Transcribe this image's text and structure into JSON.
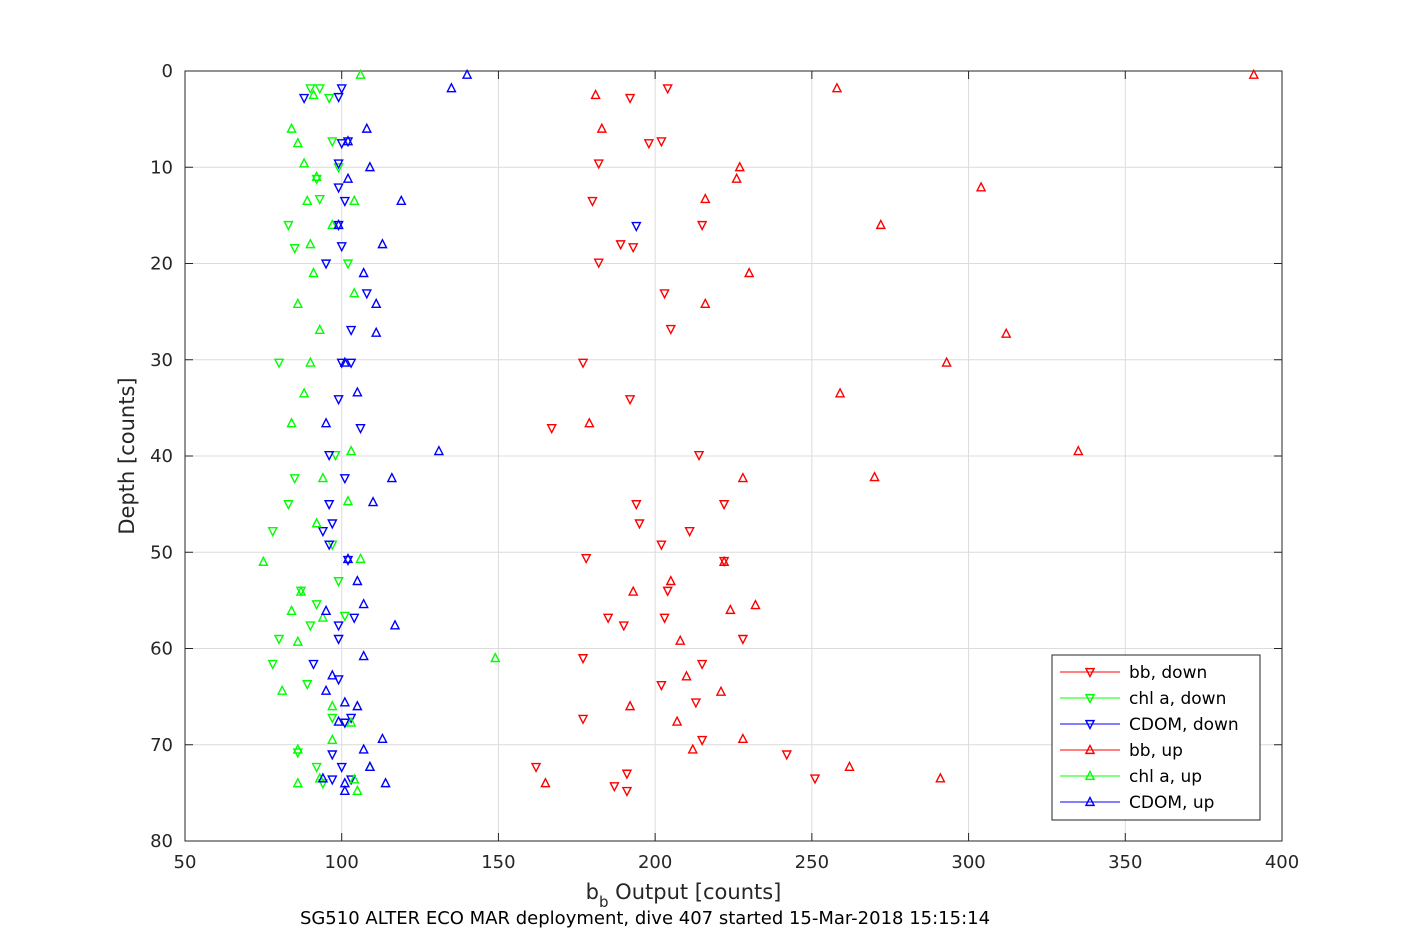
{
  "chart_data": {
    "type": "scatter",
    "title": "",
    "xlabel_main": "b",
    "xlabel_sub": "b",
    "xlabel_rest": " Output [counts]",
    "ylabel": "Depth [counts]",
    "caption": "SG510 ALTER ECO MAR deployment, dive 407 started 15-Mar-2018 15:15:14",
    "xlim": [
      50,
      400
    ],
    "ylim": [
      0,
      80
    ],
    "y_reversed": true,
    "xticks": [
      50,
      100,
      150,
      200,
      250,
      300,
      350,
      400
    ],
    "yticks": [
      0,
      10,
      20,
      30,
      40,
      50,
      60,
      70,
      80
    ],
    "grid": true,
    "legend_position": "bottom-right",
    "series": [
      {
        "name": "bb, down",
        "color": "#ff0000",
        "marker": "triangle-down",
        "points": [
          [
            204,
            1.8
          ],
          [
            192,
            2.8
          ],
          [
            198,
            7.5
          ],
          [
            202,
            7.3
          ],
          [
            182,
            9.6
          ],
          [
            180,
            13.5
          ],
          [
            215,
            16.0
          ],
          [
            193,
            18.3
          ],
          [
            189,
            18.0
          ],
          [
            182,
            19.9
          ],
          [
            203,
            23.1
          ],
          [
            205,
            26.8
          ],
          [
            177,
            30.3
          ],
          [
            192,
            34.1
          ],
          [
            167,
            37.1
          ],
          [
            214,
            39.9
          ],
          [
            194,
            45.0
          ],
          [
            222,
            45.0
          ],
          [
            195,
            47.0
          ],
          [
            211,
            47.8
          ],
          [
            202,
            49.2
          ],
          [
            178,
            50.6
          ],
          [
            222,
            50.9
          ],
          [
            204,
            54.0
          ],
          [
            190,
            57.6
          ],
          [
            185,
            56.8
          ],
          [
            203,
            56.8
          ],
          [
            228,
            59.0
          ],
          [
            215,
            61.6
          ],
          [
            177,
            61.0
          ],
          [
            202,
            63.8
          ],
          [
            213,
            65.6
          ],
          [
            177,
            67.3
          ],
          [
            215,
            69.5
          ],
          [
            242,
            71.0
          ],
          [
            162,
            72.3
          ],
          [
            251,
            73.5
          ],
          [
            191,
            73.0
          ],
          [
            187,
            74.3
          ],
          [
            191,
            74.8
          ]
        ]
      },
      {
        "name": "chl a, down",
        "color": "#00ff00",
        "marker": "triangle-down",
        "points": [
          [
            90,
            1.8
          ],
          [
            93,
            1.8
          ],
          [
            96,
            2.8
          ],
          [
            97,
            7.3
          ],
          [
            99,
            10.0
          ],
          [
            92,
            11.2
          ],
          [
            93,
            13.3
          ],
          [
            83,
            16.0
          ],
          [
            85,
            18.4
          ],
          [
            102,
            20.0
          ],
          [
            80,
            30.3
          ],
          [
            98,
            39.9
          ],
          [
            85,
            42.3
          ],
          [
            83,
            45.0
          ],
          [
            78,
            47.8
          ],
          [
            97,
            49.2
          ],
          [
            87,
            54.0
          ],
          [
            99,
            53.0
          ],
          [
            92,
            55.4
          ],
          [
            101,
            56.6
          ],
          [
            80,
            59.0
          ],
          [
            90,
            57.6
          ],
          [
            78,
            61.6
          ],
          [
            89,
            63.7
          ],
          [
            97,
            67.2
          ],
          [
            86,
            70.8
          ],
          [
            92,
            72.3
          ],
          [
            94,
            74.0
          ]
        ]
      },
      {
        "name": "CDOM, down",
        "color": "#0000ff",
        "marker": "triangle-down",
        "points": [
          [
            88,
            2.8
          ],
          [
            100,
            1.8
          ],
          [
            99,
            2.7
          ],
          [
            100,
            7.5
          ],
          [
            102,
            7.3
          ],
          [
            99,
            9.6
          ],
          [
            99,
            12.1
          ],
          [
            101,
            13.5
          ],
          [
            99,
            16.0
          ],
          [
            194,
            16.1
          ],
          [
            100,
            18.2
          ],
          [
            95,
            20.0
          ],
          [
            108,
            23.1
          ],
          [
            103,
            26.9
          ],
          [
            100,
            30.3
          ],
          [
            103,
            30.3
          ],
          [
            99,
            34.1
          ],
          [
            106,
            37.1
          ],
          [
            96,
            39.9
          ],
          [
            101,
            42.3
          ],
          [
            96,
            45.0
          ],
          [
            97,
            47.0
          ],
          [
            94,
            47.8
          ],
          [
            96,
            49.2
          ],
          [
            102,
            50.8
          ],
          [
            104,
            56.8
          ],
          [
            99,
            57.6
          ],
          [
            99,
            59.0
          ],
          [
            91,
            61.6
          ],
          [
            99,
            63.2
          ],
          [
            103,
            67.2
          ],
          [
            101,
            67.7
          ],
          [
            97,
            71.0
          ],
          [
            100,
            72.3
          ],
          [
            97,
            73.6
          ],
          [
            103,
            73.6
          ]
        ]
      },
      {
        "name": "bb, up",
        "color": "#ff0000",
        "marker": "triangle-up",
        "points": [
          [
            391,
            0.4
          ],
          [
            258,
            1.8
          ],
          [
            181,
            2.5
          ],
          [
            183,
            6.0
          ],
          [
            227,
            10.0
          ],
          [
            226,
            11.2
          ],
          [
            304,
            12.1
          ],
          [
            216,
            13.3
          ],
          [
            272,
            16.0
          ],
          [
            230,
            21.0
          ],
          [
            216,
            24.2
          ],
          [
            312,
            27.3
          ],
          [
            293,
            30.3
          ],
          [
            259,
            33.5
          ],
          [
            179,
            36.6
          ],
          [
            335,
            39.5
          ],
          [
            228,
            42.3
          ],
          [
            270,
            42.2
          ],
          [
            222,
            51.0
          ],
          [
            205,
            53.0
          ],
          [
            193,
            54.1
          ],
          [
            232,
            55.5
          ],
          [
            224,
            56.0
          ],
          [
            208,
            59.2
          ],
          [
            210,
            62.9
          ],
          [
            221,
            64.5
          ],
          [
            192,
            66.0
          ],
          [
            207,
            67.6
          ],
          [
            228,
            69.4
          ],
          [
            212,
            70.5
          ],
          [
            262,
            72.3
          ],
          [
            165,
            74.0
          ],
          [
            291,
            73.5
          ]
        ]
      },
      {
        "name": "chl a, up",
        "color": "#00ff00",
        "marker": "triangle-up",
        "points": [
          [
            106,
            0.4
          ],
          [
            91,
            2.5
          ],
          [
            84,
            6.0
          ],
          [
            86,
            7.5
          ],
          [
            88,
            9.6
          ],
          [
            92,
            11.0
          ],
          [
            89,
            13.5
          ],
          [
            104,
            13.5
          ],
          [
            97,
            16.0
          ],
          [
            90,
            18.0
          ],
          [
            91,
            21.0
          ],
          [
            104,
            23.1
          ],
          [
            86,
            24.2
          ],
          [
            93,
            26.9
          ],
          [
            90,
            30.3
          ],
          [
            88,
            33.5
          ],
          [
            84,
            36.6
          ],
          [
            103,
            39.5
          ],
          [
            94,
            42.3
          ],
          [
            102,
            44.7
          ],
          [
            92,
            47.0
          ],
          [
            75,
            51.0
          ],
          [
            106,
            50.7
          ],
          [
            87,
            54.1
          ],
          [
            84,
            56.1
          ],
          [
            94,
            56.8
          ],
          [
            86,
            59.3
          ],
          [
            149,
            61.0
          ],
          [
            81,
            64.4
          ],
          [
            97,
            66.0
          ],
          [
            103,
            67.7
          ],
          [
            97,
            69.5
          ],
          [
            86,
            70.5
          ],
          [
            109,
            72.3
          ],
          [
            93,
            73.5
          ],
          [
            104,
            73.6
          ],
          [
            86,
            74.0
          ],
          [
            105,
            74.8
          ]
        ]
      },
      {
        "name": "CDOM, up",
        "color": "#0000ff",
        "marker": "triangle-up",
        "points": [
          [
            140,
            0.4
          ],
          [
            135,
            1.8
          ],
          [
            108,
            6.0
          ],
          [
            102,
            7.3
          ],
          [
            109,
            10.0
          ],
          [
            102,
            11.2
          ],
          [
            119,
            13.5
          ],
          [
            99,
            16.0
          ],
          [
            113,
            18.0
          ],
          [
            107,
            21.0
          ],
          [
            111,
            24.2
          ],
          [
            111,
            27.2
          ],
          [
            101,
            30.3
          ],
          [
            105,
            33.4
          ],
          [
            95,
            36.6
          ],
          [
            131,
            39.5
          ],
          [
            116,
            42.3
          ],
          [
            110,
            44.8
          ],
          [
            102,
            50.7
          ],
          [
            105,
            53.0
          ],
          [
            107,
            55.4
          ],
          [
            95,
            56.1
          ],
          [
            117,
            57.6
          ],
          [
            107,
            60.8
          ],
          [
            97,
            62.8
          ],
          [
            95,
            64.4
          ],
          [
            101,
            65.6
          ],
          [
            105,
            66.0
          ],
          [
            99,
            67.6
          ],
          [
            113,
            69.4
          ],
          [
            107,
            70.5
          ],
          [
            109,
            72.3
          ],
          [
            94,
            73.5
          ],
          [
            114,
            74.0
          ],
          [
            101,
            74.0
          ],
          [
            101,
            74.8
          ]
        ]
      }
    ]
  }
}
